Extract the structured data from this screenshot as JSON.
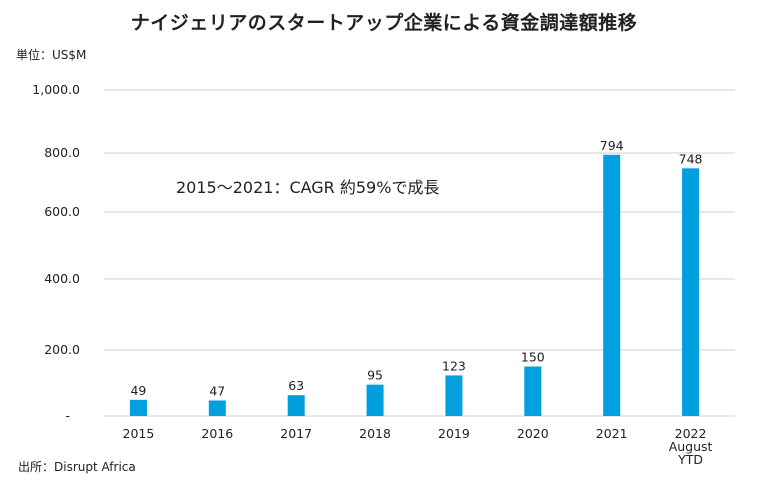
{
  "chart_data": {
    "type": "bar",
    "title": "ナイジェリアのスタートアップ企業による資金調達額推移",
    "ylabel": "単位：US$M",
    "xlabel": "",
    "categories": [
      "2015",
      "2016",
      "2017",
      "2018",
      "2019",
      "2020",
      "2021",
      "2022\nAugust\nYTD"
    ],
    "values": [
      49,
      47,
      63,
      95,
      123,
      150,
      794,
      748
    ],
    "data_labels": [
      "49",
      "47",
      "63",
      "95",
      "123",
      "150",
      "794",
      "748"
    ],
    "ylim": [
      0,
      1000
    ],
    "yticks": [
      0,
      200,
      400,
      600,
      800,
      1000
    ],
    "ytick_labels": [
      "-",
      "200.0",
      "400.0",
      "600.0",
      "800.0",
      "1,000.0"
    ],
    "grid": true,
    "bar_color": "#009FDE",
    "annotation": "2015～2021：CAGR 約59%で成長",
    "source": "出所：Disrupt Africa"
  }
}
